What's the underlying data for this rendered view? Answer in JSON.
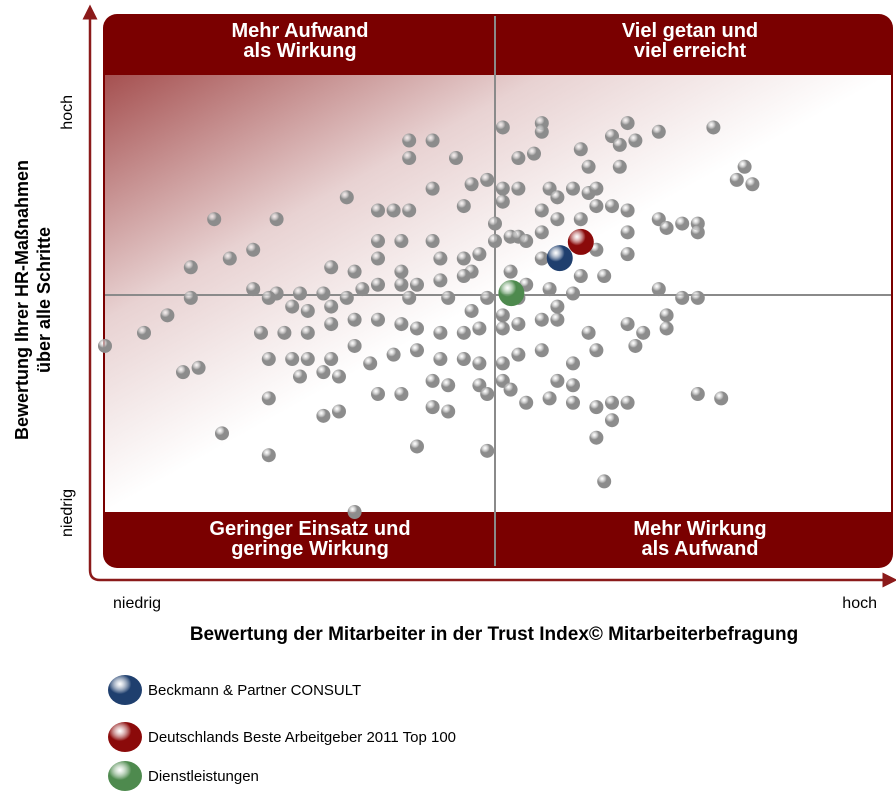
{
  "chart_data": {
    "type": "scatter",
    "xlabel": "Bewertung der Mitarbeiter in der Trust Index© Mitarbeiterbefragung",
    "ylabel": [
      "Bewertung Ihrer HR-Maßnahmen",
      "über alle Schritte"
    ],
    "annotations": [
      [
        "Mehr Aufwand",
        "als Wirkung"
      ],
      [
        "Viel getan und",
        "viel erreicht"
      ],
      [
        "Geringer Einsatz und",
        "geringe Wirkung"
      ],
      [
        "Mehr Wirkung",
        "als Aufwand"
      ]
    ],
    "xlim": [
      0,
      100
    ],
    "ylim": [
      0,
      100
    ],
    "xticks": [
      {
        "value": 0,
        "label": "niedrig"
      },
      {
        "value": 100,
        "label": "hoch"
      }
    ],
    "yticks": [
      {
        "value": 0,
        "label": "niedrig"
      },
      {
        "value": 100,
        "label": "hoch"
      }
    ],
    "series": [
      {
        "color": "#8c8c8c",
        "x": [
          78,
          82,
          81,
          83,
          71,
          65,
          67,
          68,
          66,
          66,
          61,
          62,
          56,
          56,
          51,
          55,
          53,
          39,
          39,
          42,
          45,
          49,
          51,
          53,
          57,
          58,
          60,
          62,
          63,
          63,
          67,
          71,
          72,
          74,
          76,
          76,
          67,
          65,
          56,
          58,
          61,
          51,
          50,
          50,
          52,
          53,
          54,
          56,
          63,
          67,
          64,
          71,
          74,
          76,
          72,
          72,
          67,
          69,
          68,
          63,
          62,
          60,
          60,
          58,
          57,
          60,
          63,
          65,
          67,
          65,
          63,
          64,
          76,
          79,
          47,
          42,
          46,
          39,
          37,
          35,
          31,
          22,
          14,
          19,
          16,
          11,
          11,
          8,
          5,
          0,
          10,
          12,
          19,
          22,
          25,
          28,
          32,
          29,
          35,
          38,
          42,
          43,
          46,
          48,
          47,
          46,
          43,
          40,
          38,
          35,
          33,
          31,
          29,
          26,
          24,
          21,
          20,
          23,
          26,
          29,
          32,
          35,
          38,
          40,
          43,
          46,
          48,
          51,
          53,
          56,
          58,
          21,
          24,
          26,
          29,
          32,
          37,
          40,
          43,
          46,
          48,
          51,
          53,
          56,
          25,
          28,
          30,
          34,
          42,
          44,
          48,
          51,
          52,
          54,
          21,
          28,
          30,
          35,
          38,
          42,
          44,
          49,
          15,
          21,
          40,
          49,
          32,
          38,
          35,
          39,
          44,
          47,
          52,
          54,
          57,
          60,
          61,
          56,
          58,
          53,
          49,
          51
        ],
        "values": [
          88,
          79,
          76,
          75,
          87,
          86,
          89,
          85,
          84,
          79,
          83,
          79,
          89,
          87,
          88,
          82,
          81,
          85,
          81,
          85,
          81,
          76,
          74,
          74,
          74,
          72,
          74,
          73,
          74,
          70,
          69,
          67,
          65,
          66,
          66,
          64,
          64,
          70,
          69,
          67,
          67,
          71,
          66,
          62,
          63,
          63,
          62,
          64,
          60,
          59,
          54,
          51,
          49,
          49,
          45,
          42,
          43,
          41,
          38,
          37,
          41,
          34,
          29,
          30,
          26,
          25,
          24,
          25,
          25,
          21,
          17,
          7,
          27,
          26,
          75,
          74,
          70,
          69,
          69,
          69,
          72,
          67,
          67,
          60,
          58,
          56,
          49,
          45,
          41,
          38,
          32,
          33,
          51,
          50,
          50,
          50,
          55,
          56,
          62,
          62,
          62,
          58,
          58,
          59,
          55,
          54,
          53,
          52,
          52,
          52,
          51,
          49,
          47,
          46,
          47,
          49,
          41,
          41,
          41,
          43,
          44,
          44,
          43,
          42,
          41,
          41,
          42,
          42,
          43,
          44,
          44,
          35,
          35,
          35,
          35,
          38,
          36,
          37,
          35,
          35,
          34,
          34,
          36,
          37,
          31,
          32,
          31,
          34,
          30,
          29,
          29,
          30,
          28,
          25,
          26,
          22,
          23,
          27,
          27,
          24,
          23,
          27,
          18,
          13,
          15,
          14,
          0,
          55,
          58,
          49,
          49,
          46,
          55,
          52,
          51,
          50,
          54,
          58,
          47,
          49,
          49,
          45
        ]
      },
      {
        "name": "Beckmann & Partner CONSULT",
        "color": "#1f3f6e",
        "x": [
          58.3
        ],
        "values": [
          58.1
        ]
      },
      {
        "name": "Deutschlands Beste Arbeitgeber 2011 Top 100",
        "color": "#8b0a0a",
        "x": [
          61
        ],
        "values": [
          61.8
        ]
      },
      {
        "name": "Dienstleistungen",
        "color": "#4e8a4e",
        "x": [
          52.1
        ],
        "values": [
          50.1
        ]
      }
    ]
  }
}
